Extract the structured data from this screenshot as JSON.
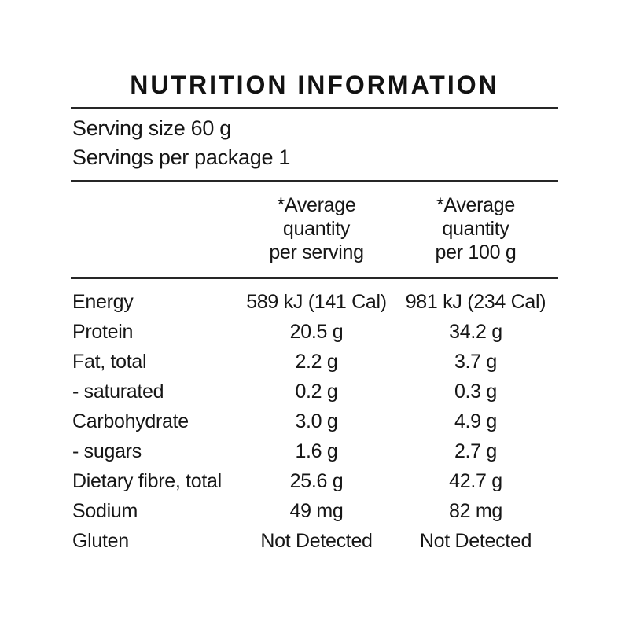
{
  "label": {
    "title": "NUTRITION INFORMATION",
    "serving_size": "Serving size 60 g",
    "servings_per_package": "Servings per package 1",
    "columns": {
      "per_serving": [
        "*Average",
        "quantity",
        "per serving"
      ],
      "per_100g": [
        "*Average",
        "quantity",
        "per 100 g"
      ]
    },
    "rows": [
      {
        "nutrient": "Energy",
        "per_serving": "589 kJ (141 Cal)",
        "per_100g": "981 kJ (234 Cal)"
      },
      {
        "nutrient": "Protein",
        "per_serving": "20.5 g",
        "per_100g": "34.2 g"
      },
      {
        "nutrient": "Fat, total",
        "per_serving": "2.2 g",
        "per_100g": "3.7 g"
      },
      {
        "nutrient": "- saturated",
        "per_serving": "0.2 g",
        "per_100g": "0.3 g"
      },
      {
        "nutrient": "Carbohydrate",
        "per_serving": "3.0 g",
        "per_100g": "4.9 g"
      },
      {
        "nutrient": "- sugars",
        "per_serving": "1.6 g",
        "per_100g": "2.7 g"
      },
      {
        "nutrient": "Dietary fibre, total",
        "per_serving": "25.6 g",
        "per_100g": "42.7 g"
      },
      {
        "nutrient": "Sodium",
        "per_serving": "49 mg",
        "per_100g": "82 mg"
      },
      {
        "nutrient": "Gluten",
        "per_serving": "Not Detected",
        "per_100g": "Not Detected"
      }
    ],
    "colors": {
      "text": "#161616",
      "rule": "#262626",
      "background": "#ffffff"
    }
  }
}
